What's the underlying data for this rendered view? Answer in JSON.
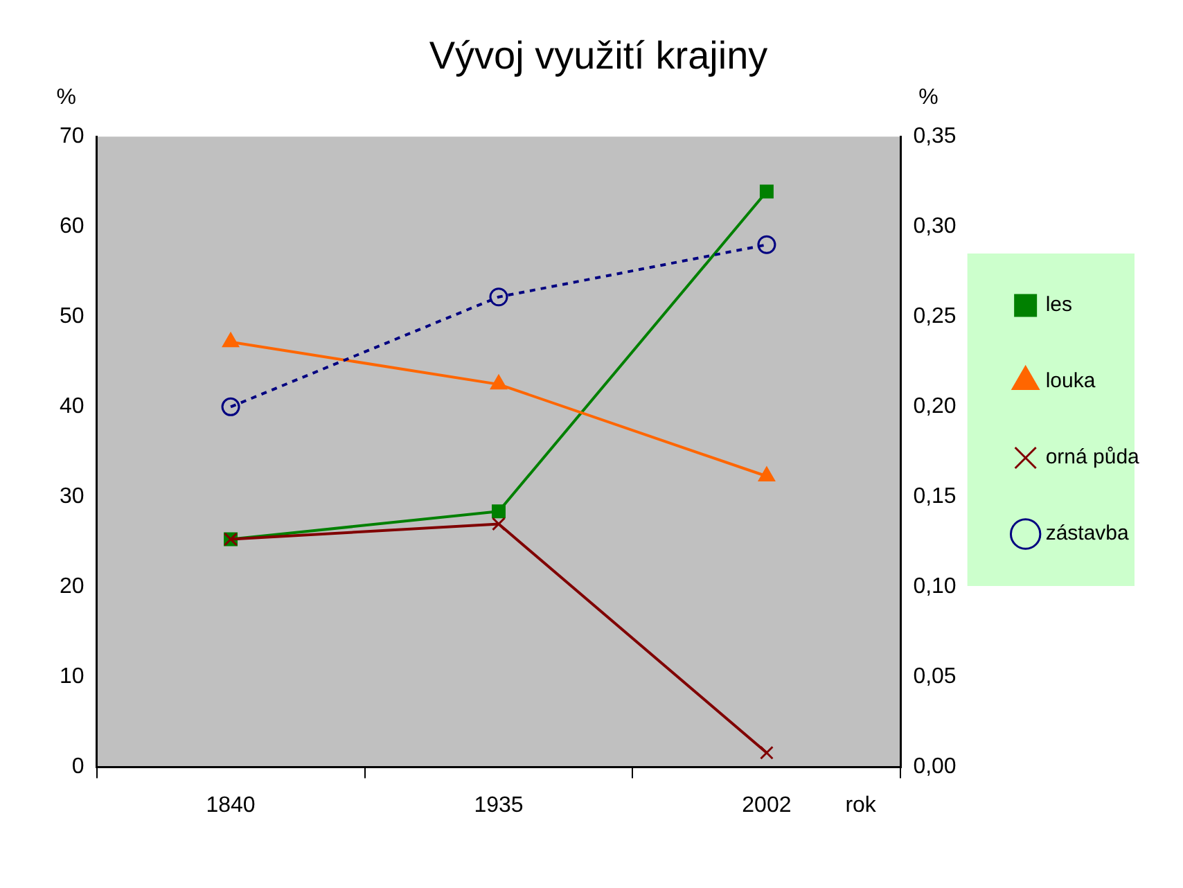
{
  "chart_data": {
    "type": "line",
    "title": "Vývoj využití krajiny",
    "xlabel": "rok",
    "ylabel": "%",
    "y2label": "%",
    "categories": [
      "1840",
      "1935",
      "2002"
    ],
    "series": [
      {
        "name": "les",
        "color": "#008000",
        "values": [
          25.3,
          28.4,
          63.9
        ],
        "marker": "square",
        "line_style": "solid"
      },
      {
        "name": "louka",
        "color": "#ff6600",
        "values": [
          47.2,
          42.5,
          32.3
        ],
        "marker": "triangle",
        "line_style": "solid"
      },
      {
        "name": "orná půda",
        "color": "#800000",
        "values": [
          25.3,
          27,
          1.6
        ],
        "marker": "cross",
        "line_style": "solid"
      },
      {
        "name": "zástavba",
        "color": "#000080",
        "values": [
          0.2,
          0.261,
          0.29
        ],
        "marker": "circle",
        "line_style": "dashed",
        "axis": "y2"
      }
    ],
    "ylim": [
      0,
      70
    ],
    "yticks": [
      0,
      10,
      20,
      30,
      40,
      50,
      60,
      70
    ],
    "y2lim": [
      0,
      0.35
    ],
    "y2ticks": [
      {
        "value": 0,
        "label": "0,00"
      },
      {
        "value": 0.05,
        "label": "0,05"
      },
      {
        "value": 0.1,
        "label": "0,10"
      },
      {
        "value": 0.15,
        "label": "0,15"
      },
      {
        "value": 0.2,
        "label": "0,20"
      },
      {
        "value": 0.25,
        "label": "0,25"
      },
      {
        "value": 0.3,
        "label": "0,30"
      },
      {
        "value": 0.35,
        "label": "0,35"
      }
    ],
    "grid": false,
    "legend": "right"
  }
}
